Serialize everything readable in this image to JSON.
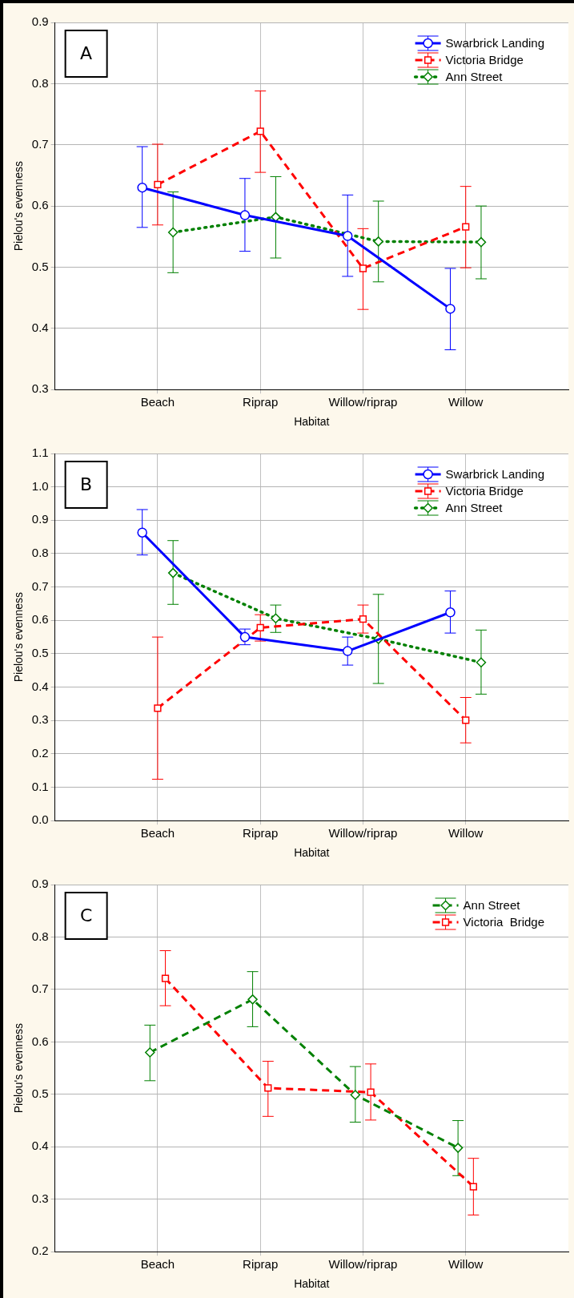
{
  "chart_data": [
    {
      "type": "line",
      "xlabel": "Habitat",
      "ylabel": "Pielou's evenness",
      "annotations": [
        "A"
      ],
      "categories": [
        "Beach",
        "Riprap",
        "Willow/riprap",
        "Willow"
      ],
      "ylim": [
        0.3,
        0.9
      ],
      "yticks": [
        0.3,
        0.4,
        0.5,
        0.6,
        0.7,
        0.8,
        0.9
      ],
      "grid": true,
      "legend": "top right",
      "series": [
        {
          "name": "Swarbrick Landing",
          "color": "#0000ff",
          "marker": "circle",
          "line_style": "solid",
          "values": [
            0.63,
            0.585,
            0.551,
            0.432
          ],
          "errors": [
            [
              0.565,
              0.697
            ],
            [
              0.526,
              0.645
            ],
            [
              0.485,
              0.618
            ],
            [
              0.365,
              0.498
            ]
          ]
        },
        {
          "name": "Victoria Bridge",
          "color": "#ff0000",
          "marker": "square",
          "line_style": "dashed",
          "values": [
            0.635,
            0.722,
            0.498,
            0.566
          ],
          "errors": [
            [
              0.569,
              0.701
            ],
            [
              0.655,
              0.788
            ],
            [
              0.431,
              0.563
            ],
            [
              0.499,
              0.632
            ]
          ]
        },
        {
          "name": "Ann Street",
          "color": "#008000",
          "marker": "diamond",
          "line_style": "dotted",
          "values": [
            0.557,
            0.582,
            0.542,
            0.541
          ],
          "errors": [
            [
              0.491,
              0.623
            ],
            [
              0.515,
              0.648
            ],
            [
              0.476,
              0.608
            ],
            [
              0.481,
              0.6
            ]
          ]
        }
      ]
    },
    {
      "type": "line",
      "xlabel": "Habitat",
      "ylabel": "Pielou's evenness",
      "annotations": [
        "B"
      ],
      "categories": [
        "Beach",
        "Riprap",
        "Willow/riprap",
        "Willow"
      ],
      "ylim": [
        0,
        1.1
      ],
      "yticks": [
        {
          "value": 0,
          "label": "0.0"
        },
        0.1,
        0.2,
        0.3,
        0.4,
        0.5,
        0.6,
        0.7,
        0.8,
        0.9,
        {
          "value": 1,
          "label": "1.0"
        },
        1.1
      ],
      "grid": true,
      "legend": "top right",
      "series": [
        {
          "name": "Swarbrick Landing",
          "color": "#0000ff",
          "marker": "circle",
          "line_style": "solid",
          "values": [
            0.863,
            0.55,
            0.508,
            0.624
          ],
          "errors": [
            [
              0.796,
              0.932
            ],
            [
              0.527,
              0.574
            ],
            [
              0.466,
              0.55
            ],
            [
              0.562,
              0.688
            ]
          ]
        },
        {
          "name": "Victoria Bridge",
          "color": "#ff0000",
          "marker": "square",
          "line_style": "dashed",
          "values": [
            0.337,
            0.578,
            0.604,
            0.301
          ],
          "errors": [
            [
              0.124,
              0.55
            ],
            [
              0.538,
              0.617
            ],
            [
              0.562,
              0.646
            ],
            [
              0.233,
              0.369
            ]
          ]
        },
        {
          "name": "Ann Street",
          "color": "#008000",
          "marker": "diamond",
          "line_style": "dotted",
          "values": [
            0.742,
            0.606,
            0.544,
            0.474
          ],
          "errors": [
            [
              0.648,
              0.839
            ],
            [
              0.564,
              0.646
            ],
            [
              0.411,
              0.678
            ],
            [
              0.379,
              0.571
            ]
          ]
        }
      ]
    },
    {
      "type": "line",
      "xlabel": "Habitat",
      "ylabel": "Pielou's evenness",
      "annotations": [
        "C"
      ],
      "categories": [
        "Beach",
        "Riprap",
        "Willow/riprap",
        "Willow"
      ],
      "ylim": [
        0.2,
        0.9
      ],
      "yticks": [
        0.2,
        0.3,
        0.4,
        0.5,
        0.6,
        0.7,
        0.8,
        0.9
      ],
      "grid": true,
      "legend": "top right",
      "series": [
        {
          "name": "Ann Street",
          "color": "#008000",
          "marker": "diamond",
          "line_style": "dashed",
          "values": [
            0.58,
            0.681,
            0.499,
            0.398
          ],
          "errors": [
            [
              0.526,
              0.632
            ],
            [
              0.629,
              0.734
            ],
            [
              0.447,
              0.553
            ],
            [
              0.345,
              0.45
            ]
          ]
        },
        {
          "name": "Victoria  Bridge",
          "color": "#ff0000",
          "marker": "square",
          "line_style": "dashed",
          "values": [
            0.721,
            0.512,
            0.504,
            0.324
          ],
          "errors": [
            [
              0.669,
              0.774
            ],
            [
              0.458,
              0.563
            ],
            [
              0.451,
              0.558
            ],
            [
              0.27,
              0.378
            ]
          ]
        }
      ]
    }
  ]
}
